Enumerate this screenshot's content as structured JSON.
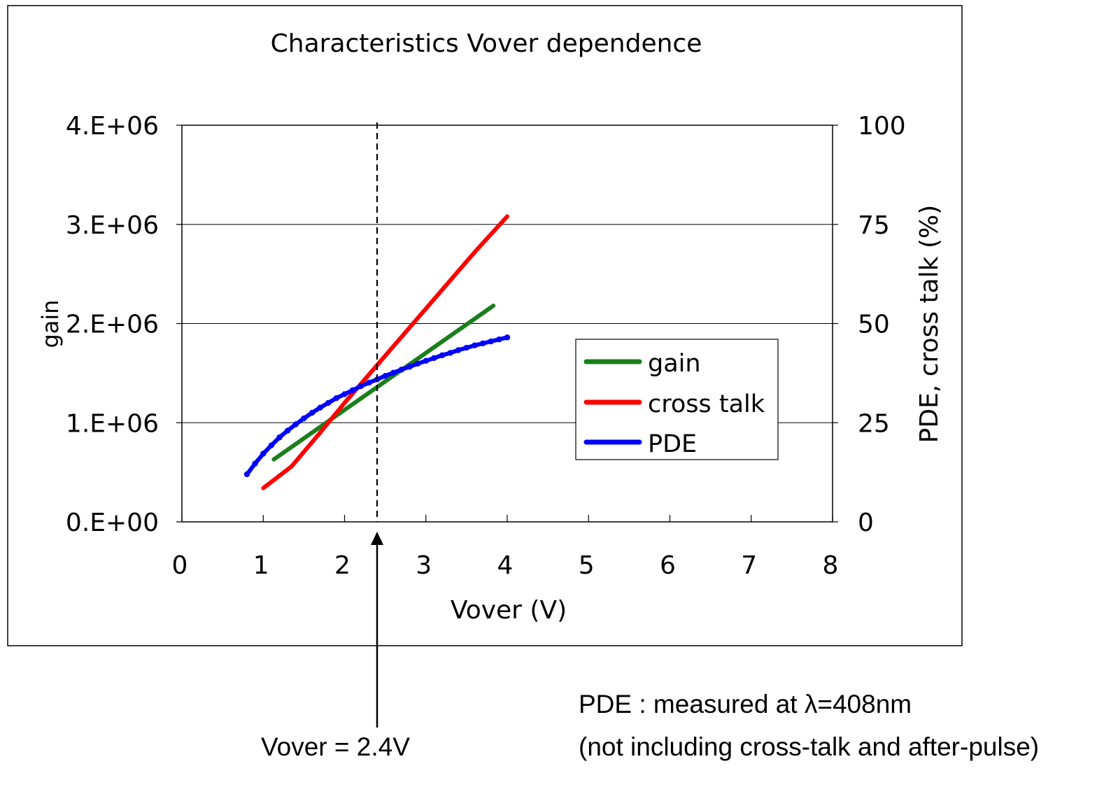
{
  "chart_data": {
    "type": "line",
    "title": "Characteristics Vover dependence",
    "xlabel": "Vover (V)",
    "ylabel": "gain",
    "y2label": "PDE, cross talk (%)",
    "xlim": [
      0,
      8
    ],
    "ylim": [
      0,
      4000000
    ],
    "y2lim": [
      0,
      100
    ],
    "x_ticks": [
      "0",
      "1",
      "2",
      "3",
      "4",
      "5",
      "6",
      "7",
      "8"
    ],
    "y_ticks": [
      "0.E+00",
      "1.E+06",
      "2.E+06",
      "3.E+06",
      "4.E+06"
    ],
    "y2_ticks": [
      "0",
      "25",
      "50",
      "75",
      "100"
    ],
    "grid": "horizontal",
    "legend_position": "right",
    "series": [
      {
        "name": "gain",
        "axis": "left",
        "color": "#1a7f1a",
        "x": [
          1.13,
          3.83
        ],
        "y": [
          630000,
          2180000
        ]
      },
      {
        "name": "cross talk",
        "axis": "right",
        "color": "#ff0000",
        "x": [
          1.0,
          1.35,
          1.7,
          2.0,
          2.4,
          2.8,
          3.2,
          3.6,
          4.0
        ],
        "y": [
          8.5,
          14,
          22.5,
          30,
          39.5,
          49,
          58.5,
          68,
          77
        ]
      },
      {
        "name": "PDE",
        "axis": "right",
        "color": "#0000ff",
        "marker": "dot",
        "x": [
          0.8,
          0.9,
          1.0,
          1.1,
          1.2,
          1.3,
          1.4,
          1.5,
          1.6,
          1.7,
          1.8,
          1.9,
          2.0,
          2.1,
          2.2,
          2.3,
          2.4,
          2.5,
          2.6,
          2.7,
          2.8,
          2.9,
          3.0,
          3.1,
          3.2,
          3.3,
          3.4,
          3.5,
          3.6,
          3.7,
          3.8,
          3.9,
          4.0
        ],
        "y": [
          12,
          14.7,
          17.2,
          19.3,
          21.3,
          23.0,
          24.6,
          26.1,
          27.5,
          28.8,
          30.0,
          31.2,
          32.2,
          33.2,
          34.2,
          35.1,
          35.9,
          36.8,
          37.6,
          38.4,
          39.1,
          39.9,
          40.6,
          41.3,
          42.0,
          42.6,
          43.3,
          43.9,
          44.5,
          45.0,
          45.5,
          46.0,
          46.5
        ]
      }
    ],
    "annotations": [
      {
        "type": "vline",
        "x": 2.4,
        "style": "dashed"
      },
      {
        "type": "arrow",
        "x": 2.4,
        "label": "Vover = 2.4V"
      }
    ]
  },
  "notes": {
    "arrow_label": "Vover = 2.4V",
    "pde_line1": "PDE : measured at λ=408nm",
    "pde_line2": "(not including cross-talk and after-pulse)"
  }
}
